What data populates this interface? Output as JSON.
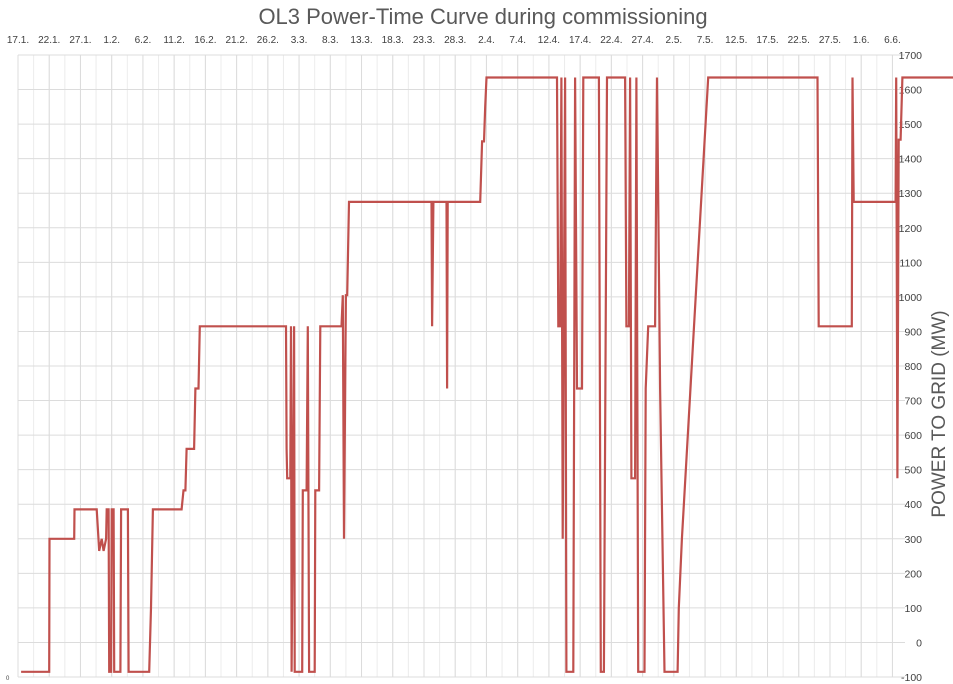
{
  "chart_data": {
    "type": "line",
    "title": "OL3 Power-Time Curve during commissioning",
    "xlabel": "",
    "ylabel": "POWER TO GRID (MW)",
    "x_tick_labels": [
      "17.1.",
      "22.1.",
      "27.1.",
      "1.2.",
      "6.2.",
      "11.2.",
      "16.2.",
      "21.2.",
      "26.2.",
      "3.3.",
      "8.3.",
      "13.3.",
      "18.3.",
      "23.3.",
      "28.3.",
      "2.4.",
      "7.4.",
      "12.4.",
      "17.4.",
      "22.4.",
      "27.4.",
      "2.5.",
      "7.5.",
      "12.5.",
      "17.5.",
      "22.5.",
      "27.5.",
      "1.6.",
      "6.6."
    ],
    "x_axis_position": "top",
    "y_axis_position": "right",
    "ylim": [
      -100,
      1700
    ],
    "y_ticks": [
      -100,
      0,
      100,
      200,
      300,
      400,
      500,
      600,
      700,
      800,
      900,
      1000,
      1100,
      1200,
      1300,
      1400,
      1500,
      1600,
      1700
    ],
    "corner_label": "0",
    "grid": true,
    "line_color": "#c0504d",
    "series": [
      {
        "x_unit": "days since 17.1.",
        "points": [
          [
            0.5,
            -85
          ],
          [
            5.0,
            -85
          ],
          [
            5.05,
            300
          ],
          [
            9.0,
            300
          ],
          [
            9.05,
            385
          ],
          [
            12.6,
            385
          ],
          [
            13.0,
            265
          ],
          [
            13.4,
            300
          ],
          [
            13.7,
            265
          ],
          [
            14.1,
            300
          ],
          [
            14.2,
            385
          ],
          [
            14.5,
            385
          ],
          [
            14.6,
            -85
          ],
          [
            14.9,
            -85
          ],
          [
            15.0,
            385
          ],
          [
            15.3,
            385
          ],
          [
            15.4,
            -85
          ],
          [
            16.4,
            -85
          ],
          [
            16.5,
            385
          ],
          [
            17.6,
            385
          ],
          [
            17.7,
            -85
          ],
          [
            21.0,
            -85
          ],
          [
            21.3,
            100
          ],
          [
            21.6,
            385
          ],
          [
            26.2,
            385
          ],
          [
            26.5,
            440
          ],
          [
            26.8,
            440
          ],
          [
            27.0,
            560
          ],
          [
            28.2,
            560
          ],
          [
            28.4,
            735
          ],
          [
            28.9,
            735
          ],
          [
            29.1,
            915
          ],
          [
            42.9,
            915
          ],
          [
            43.0,
            560
          ],
          [
            43.1,
            475
          ],
          [
            43.6,
            475
          ],
          [
            43.7,
            915
          ],
          [
            43.8,
            -85
          ],
          [
            44.2,
            915
          ],
          [
            44.3,
            -85
          ],
          [
            45.5,
            -85
          ],
          [
            45.6,
            440
          ],
          [
            46.2,
            440
          ],
          [
            46.4,
            915
          ],
          [
            46.6,
            -85
          ],
          [
            47.5,
            -85
          ],
          [
            47.6,
            440
          ],
          [
            48.2,
            440
          ],
          [
            48.4,
            915
          ],
          [
            51.8,
            915
          ],
          [
            52.0,
            1005
          ],
          [
            52.2,
            300
          ],
          [
            52.5,
            1005
          ],
          [
            52.7,
            1005
          ],
          [
            53.0,
            1275
          ],
          [
            66.2,
            1275
          ],
          [
            66.3,
            915
          ],
          [
            66.5,
            1275
          ],
          [
            68.6,
            1275
          ],
          [
            68.7,
            735
          ],
          [
            68.8,
            1275
          ],
          [
            74.0,
            1275
          ],
          [
            74.3,
            1450
          ],
          [
            74.6,
            1450
          ],
          [
            74.8,
            1550
          ],
          [
            75.0,
            1635
          ],
          [
            86.3,
            1635
          ],
          [
            86.5,
            915
          ],
          [
            86.8,
            915
          ],
          [
            87.0,
            1635
          ],
          [
            87.2,
            300
          ],
          [
            87.6,
            1635
          ],
          [
            87.8,
            -85
          ],
          [
            88.9,
            -85
          ],
          [
            89.2,
            1635
          ],
          [
            89.5,
            735
          ],
          [
            90.3,
            735
          ],
          [
            90.5,
            1635
          ],
          [
            93.0,
            1635
          ],
          [
            93.3,
            -85
          ],
          [
            93.8,
            -85
          ],
          [
            94.3,
            1635
          ],
          [
            97.2,
            1635
          ],
          [
            97.4,
            915
          ],
          [
            97.8,
            915
          ],
          [
            98.0,
            1635
          ],
          [
            98.2,
            475
          ],
          [
            98.8,
            475
          ],
          [
            99.0,
            1635
          ],
          [
            99.3,
            -85
          ],
          [
            100.3,
            -85
          ],
          [
            100.5,
            735
          ],
          [
            100.9,
            915
          ],
          [
            102.0,
            915
          ],
          [
            102.3,
            1635
          ],
          [
            102.8,
            735
          ],
          [
            103.5,
            -85
          ],
          [
            105.6,
            -85
          ],
          [
            105.8,
            100
          ],
          [
            106.3,
            300
          ],
          [
            110.5,
            1635
          ],
          [
            128.0,
            1635
          ],
          [
            128.2,
            915
          ],
          [
            133.5,
            915
          ],
          [
            133.6,
            1635
          ],
          [
            133.8,
            1275
          ],
          [
            140.5,
            1275
          ],
          [
            140.6,
            1635
          ],
          [
            140.8,
            475
          ],
          [
            141.0,
            1455
          ],
          [
            141.3,
            1455
          ],
          [
            141.6,
            1635
          ],
          [
            150.5,
            1635
          ]
        ]
      }
    ]
  }
}
